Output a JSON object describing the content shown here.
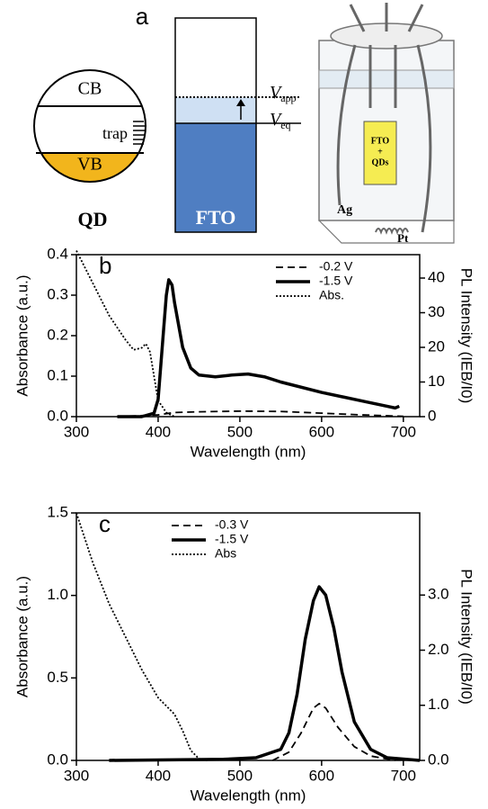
{
  "diagram": {
    "panel_label": "a",
    "cb": "CB",
    "trap": "trap",
    "vb": "VB",
    "qd": "QD",
    "fto": "FTO",
    "v_app": {
      "symbol": "V",
      "sub": "app"
    },
    "v_eq": {
      "symbol": "V",
      "sub": "eq"
    },
    "vial_top": "FTO",
    "vial_plus": "+",
    "vial_bottom": "QDs",
    "ag": "Ag",
    "pt": "Pt"
  },
  "chart_data": [
    {
      "type": "line",
      "panel_label": "b",
      "xlabel": "Wavelength (nm)",
      "ylabel": "Absorbance (a.u.)",
      "y2label": "PL Intensity (IEB/I0)",
      "xlim": [
        300,
        720
      ],
      "xticks": [
        300,
        400,
        500,
        600,
        700
      ],
      "ylim": [
        0,
        0.4
      ],
      "yticks": [
        {
          "value": 0,
          "label": "0.0"
        },
        0.1,
        0.2,
        0.3,
        0.4
      ],
      "y2lim": [
        0,
        46.75
      ],
      "y2ticks": [
        0,
        10,
        20,
        30,
        40
      ],
      "legend": "upper right",
      "series": [
        {
          "name": "-0.2 V",
          "color": "#000000",
          "style": "dashed",
          "axis": "y2",
          "x": [
            350,
            400,
            420,
            450,
            500,
            550,
            600,
            650,
            700
          ],
          "values": [
            0,
            0.5,
            1.2,
            1.4,
            1.6,
            1.5,
            1,
            0.5,
            0.1
          ]
        },
        {
          "name": "-1.5 V",
          "color": "#000000",
          "style": "solid",
          "axis": "y2",
          "x": [
            350,
            380,
            395,
            400,
            405,
            410,
            413,
            417,
            420,
            430,
            440,
            450,
            470,
            490,
            510,
            530,
            550,
            600,
            650,
            680,
            690,
            695
          ],
          "values": [
            0,
            0,
            1,
            5,
            20,
            35,
            39.5,
            38,
            33,
            20,
            14,
            12,
            11.5,
            12,
            12.3,
            11.5,
            10,
            7,
            4.5,
            3,
            2.5,
            3
          ]
        },
        {
          "name": "Abs.",
          "color": "#000000",
          "style": "dotted",
          "axis": "y",
          "x": [
            300,
            320,
            340,
            360,
            370,
            380,
            385,
            390,
            395,
            400,
            410,
            420
          ],
          "values": [
            0.41,
            0.33,
            0.25,
            0.19,
            0.165,
            0.17,
            0.18,
            0.16,
            0.1,
            0.04,
            0.01,
            0
          ]
        }
      ]
    },
    {
      "type": "line",
      "panel_label": "c",
      "xlabel": "Wavelength (nm)",
      "ylabel": "Absorbance (a.u.)",
      "y2label": "PL Intensity (IEB/I0)",
      "xlim": [
        300,
        720
      ],
      "xticks": [
        300,
        400,
        500,
        600,
        700
      ],
      "ylim": [
        0,
        1.5
      ],
      "yticks": [
        {
          "value": 0,
          "label": "0.0"
        },
        0.5,
        {
          "value": 1,
          "label": "1.0"
        },
        1.5
      ],
      "y2lim": [
        0,
        4.49
      ],
      "y2ticks": [
        {
          "value": 0,
          "label": "0.0"
        },
        {
          "value": 1,
          "label": "1.0"
        },
        {
          "value": 2,
          "label": "2.0"
        },
        {
          "value": 3,
          "label": "3.0"
        }
      ],
      "legend": "upper center",
      "series": [
        {
          "name": "-0.3 V",
          "color": "#000000",
          "style": "dashed",
          "axis": "y2",
          "x": [
            540,
            560,
            575,
            590,
            597,
            605,
            620,
            640,
            660,
            690
          ],
          "values": [
            0,
            0.15,
            0.5,
            0.95,
            1.03,
            0.95,
            0.6,
            0.25,
            0.08,
            0
          ]
        },
        {
          "name": "-1.5 V",
          "color": "#000000",
          "style": "solid",
          "axis": "y2",
          "x": [
            340,
            480,
            520,
            550,
            560,
            570,
            580,
            590,
            597,
            605,
            615,
            625,
            640,
            660,
            680,
            720
          ],
          "values": [
            0,
            0.02,
            0.05,
            0.2,
            0.5,
            1.2,
            2.2,
            2.9,
            3.15,
            3,
            2.4,
            1.6,
            0.7,
            0.2,
            0.05,
            0
          ]
        },
        {
          "name": "Abs",
          "color": "#000000",
          "style": "dotted",
          "axis": "y",
          "x": [
            300,
            320,
            340,
            360,
            380,
            400,
            420,
            430,
            440,
            450,
            460
          ],
          "values": [
            1.5,
            1.2,
            0.95,
            0.75,
            0.55,
            0.38,
            0.28,
            0.18,
            0.06,
            0.01,
            0
          ]
        }
      ]
    }
  ]
}
